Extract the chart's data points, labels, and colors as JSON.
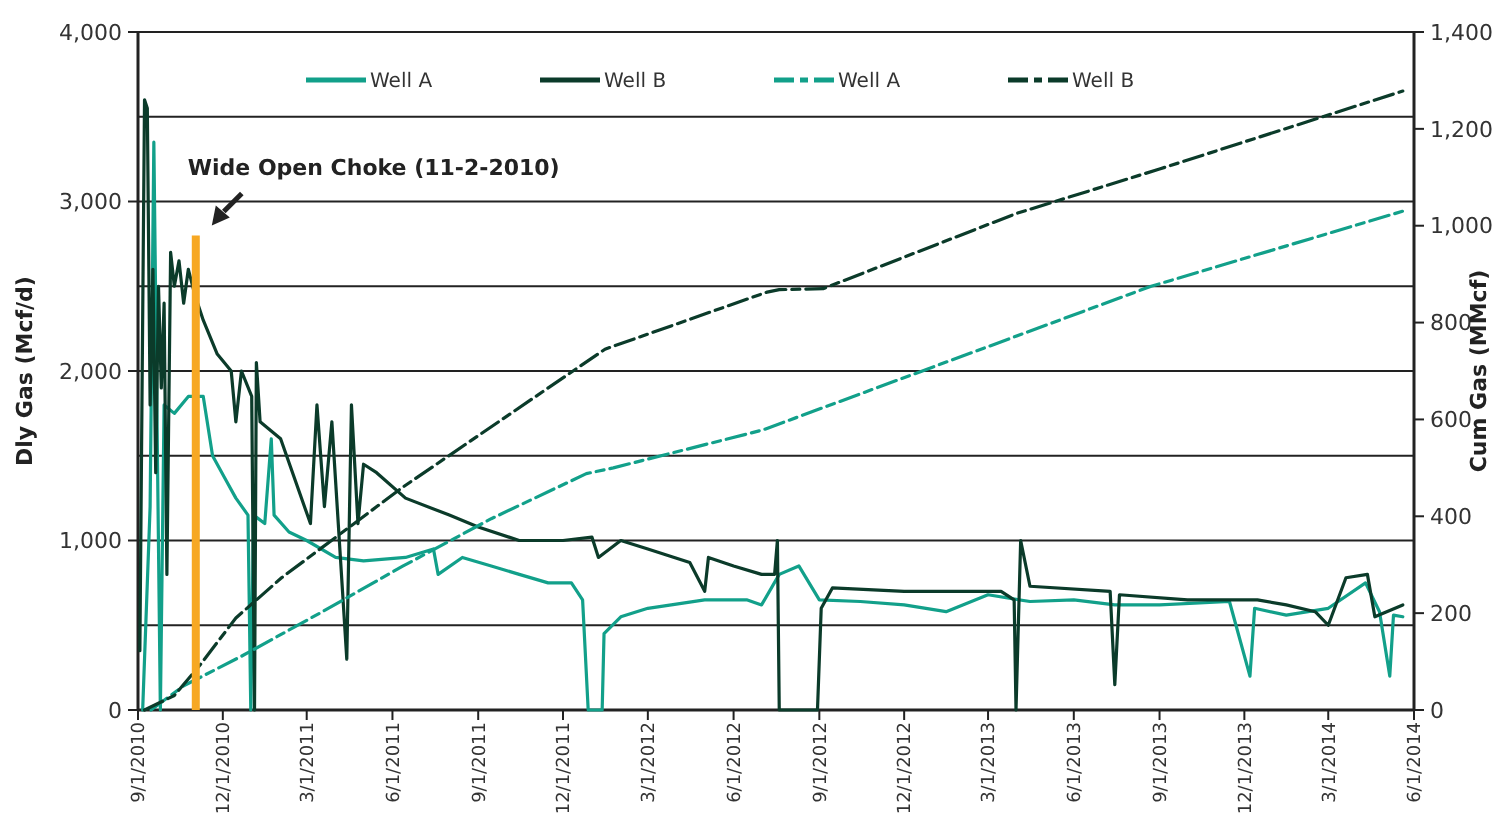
{
  "chart_data": {
    "type": "line",
    "xlabel": null,
    "ylabel": "Dly Gas (Mcf/d)",
    "y2label": "Cum Gas (MMcf)",
    "xlim": [
      "2010-09-01",
      "2014-06-01"
    ],
    "xticks": [
      {
        "value": "2010-09-01",
        "label": "9/1/2010"
      },
      {
        "value": "2010-12-01",
        "label": "12/1/2010"
      },
      {
        "value": "2011-03-01",
        "label": "3/1/2011"
      },
      {
        "value": "2011-06-01",
        "label": "6/1/2011"
      },
      {
        "value": "2011-09-01",
        "label": "9/1/2011"
      },
      {
        "value": "2011-12-01",
        "label": "12/1/2011"
      },
      {
        "value": "2012-03-01",
        "label": "3/1/2012"
      },
      {
        "value": "2012-06-01",
        "label": "6/1/2012"
      },
      {
        "value": "2012-09-01",
        "label": "9/1/2012"
      },
      {
        "value": "2012-12-01",
        "label": "12/1/2012"
      },
      {
        "value": "2013-03-01",
        "label": "3/1/2013"
      },
      {
        "value": "2013-06-01",
        "label": "6/1/2013"
      },
      {
        "value": "2013-09-01",
        "label": "9/1/2013"
      },
      {
        "value": "2013-12-01",
        "label": "12/1/2013"
      },
      {
        "value": "2014-03-01",
        "label": "3/1/2014"
      },
      {
        "value": "2014-06-01",
        "label": "6/1/2014"
      }
    ],
    "ylim": [
      0,
      4000
    ],
    "yticks": [
      {
        "value": 0,
        "label": "0"
      },
      {
        "value": 500,
        "label": null
      },
      {
        "value": 1000,
        "label": "1,000"
      },
      {
        "value": 1500,
        "label": null
      },
      {
        "value": 2000,
        "label": "2,000"
      },
      {
        "value": 2500,
        "label": null
      },
      {
        "value": 3000,
        "label": "3,000"
      },
      {
        "value": 3500,
        "label": null
      },
      {
        "value": 4000,
        "label": "4,000"
      }
    ],
    "y2lim": [
      0,
      1400
    ],
    "y2ticks": [
      {
        "value": 0,
        "label": "0"
      },
      {
        "value": 200,
        "label": "200"
      },
      {
        "value": 400,
        "label": "400"
      },
      {
        "value": 600,
        "label": "600"
      },
      {
        "value": 800,
        "label": "800"
      },
      {
        "value": 1000,
        "label": "1,000"
      },
      {
        "value": 1200,
        "label": "1,200"
      },
      {
        "value": 1400,
        "label": "1,400"
      }
    ],
    "grid": "y",
    "legend": "top",
    "ref_lines": [
      {
        "axis": "x",
        "value": "2010-11-02",
        "color": "#f7a823"
      }
    ],
    "annotations": [
      {
        "text": "Wide Open Choke (11-2-2010)",
        "x": "2010-11-02",
        "y": 2800
      }
    ],
    "series": [
      {
        "name": "Well A",
        "color": "#12a08a",
        "line_style": "solid",
        "x": [
          "2010-09-06",
          "2010-09-14",
          "2010-09-18",
          "2010-09-25",
          "2010-09-29",
          "2010-10-10",
          "2010-10-25",
          "2010-11-10",
          "2010-11-20",
          "2010-12-05",
          "2010-12-15",
          "2010-12-28",
          "2010-12-31",
          "2011-01-03",
          "2011-01-15",
          "2011-01-22",
          "2011-01-25",
          "2011-02-10",
          "2011-03-01",
          "2011-04-01",
          "2011-05-01",
          "2011-06-15",
          "2011-07-15",
          "2011-07-20",
          "2011-08-15",
          "2011-09-15",
          "2011-10-15",
          "2011-11-15",
          "2011-12-10",
          "2011-12-22",
          "2011-12-28",
          "2012-01-12",
          "2012-01-14",
          "2012-02-01",
          "2012-03-01",
          "2012-05-01",
          "2012-06-15",
          "2012-07-01",
          "2012-07-20",
          "2012-08-10",
          "2012-09-01",
          "2012-10-15",
          "2012-12-01",
          "2013-01-15",
          "2013-03-01",
          "2013-04-15",
          "2013-06-01",
          "2013-07-15",
          "2013-09-01",
          "2013-11-15",
          "2013-12-07",
          "2013-12-12",
          "2014-01-15",
          "2014-03-01",
          "2014-04-10",
          "2014-04-25",
          "2014-05-06",
          "2014-05-10",
          "2014-05-20"
        ],
        "values": [
          0,
          1200,
          3350,
          0,
          1800,
          1750,
          1850,
          1850,
          1500,
          1350,
          1250,
          1150,
          0,
          1150,
          1100,
          1600,
          1150,
          1050,
          1000,
          900,
          880,
          900,
          950,
          800,
          900,
          850,
          800,
          750,
          750,
          650,
          0,
          0,
          450,
          550,
          600,
          650,
          650,
          620,
          800,
          850,
          650,
          640,
          620,
          580,
          680,
          640,
          650,
          620,
          620,
          640,
          200,
          600,
          560,
          600,
          750,
          580,
          200,
          560,
          550
        ]
      },
      {
        "name": "Well B",
        "color": "#0b3b2a",
        "line_style": "solid",
        "x": [
          "2010-09-03",
          "2010-09-08",
          "2010-09-11",
          "2010-09-14",
          "2010-09-17",
          "2010-09-20",
          "2010-09-23",
          "2010-09-26",
          "2010-09-29",
          "2010-10-02",
          "2010-10-06",
          "2010-10-10",
          "2010-10-15",
          "2010-10-20",
          "2010-10-25",
          "2010-11-01",
          "2010-11-10",
          "2010-11-25",
          "2010-12-10",
          "2010-12-15",
          "2010-12-21",
          "2011-01-01",
          "2011-01-04",
          "2011-01-06",
          "2011-01-10",
          "2011-02-01",
          "2011-03-05",
          "2011-03-12",
          "2011-03-20",
          "2011-03-28",
          "2011-04-05",
          "2011-04-13",
          "2011-04-18",
          "2011-04-25",
          "2011-05-01",
          "2011-05-15",
          "2011-06-15",
          "2011-08-01",
          "2011-09-01",
          "2011-10-15",
          "2011-12-01",
          "2012-01-01",
          "2012-01-08",
          "2012-02-01",
          "2012-03-01",
          "2012-04-15",
          "2012-05-01",
          "2012-05-05",
          "2012-06-01",
          "2012-07-01",
          "2012-07-15",
          "2012-07-18",
          "2012-07-20",
          "2012-08-30",
          "2012-09-03",
          "2012-09-15",
          "2012-12-01",
          "2013-03-15",
          "2013-03-29",
          "2013-03-31",
          "2013-04-05",
          "2013-04-15",
          "2013-07-10",
          "2013-07-15",
          "2013-07-20",
          "2013-10-01",
          "2013-12-15",
          "2014-01-15",
          "2014-02-15",
          "2014-03-01",
          "2014-03-20",
          "2014-04-12",
          "2014-04-20",
          "2014-05-20"
        ],
        "values": [
          350,
          3600,
          3550,
          1800,
          2600,
          1400,
          2500,
          1900,
          2400,
          800,
          2700,
          2500,
          2650,
          2400,
          2600,
          2450,
          2300,
          2100,
          2000,
          1700,
          2000,
          1850,
          0,
          2050,
          1700,
          1600,
          1100,
          1800,
          1200,
          1700,
          1000,
          300,
          1800,
          1100,
          1450,
          1400,
          1250,
          1150,
          1080,
          1000,
          1000,
          1020,
          900,
          1000,
          950,
          870,
          700,
          900,
          850,
          800,
          800,
          1000,
          0,
          0,
          600,
          720,
          700,
          700,
          650,
          0,
          1000,
          730,
          700,
          150,
          680,
          650,
          650,
          620,
          580,
          500,
          780,
          800,
          550,
          620
        ]
      },
      {
        "name": "Well A",
        "color": "#12a08a",
        "axis": "y2",
        "line_style": "dashed",
        "x": [
          "2010-09-15",
          "2010-10-20",
          "2010-12-20",
          "2011-03-15",
          "2011-06-12",
          "2011-09-15",
          "2011-12-26",
          "2012-01-24",
          "2012-07-02",
          "2013-08-23",
          "2014-05-20"
        ],
        "values": [
          0,
          50,
          110,
          200,
          297,
          395,
          488,
          500,
          578,
          875,
          1030
        ]
      },
      {
        "name": "Well B",
        "color": "#0b3b2a",
        "axis": "y2",
        "line_style": "dashed",
        "x": [
          "2010-09-08",
          "2010-10-10",
          "2010-11-07",
          "2010-12-15",
          "2011-02-02",
          "2011-06-12",
          "2012-01-15",
          "2012-07-07",
          "2012-07-20",
          "2012-09-05",
          "2013-03-31",
          "2013-09-01",
          "2014-05-20"
        ],
        "values": [
          0,
          30,
          94,
          190,
          273,
          460,
          745,
          863,
          868,
          870,
          1025,
          1117,
          1278
        ]
      }
    ]
  }
}
